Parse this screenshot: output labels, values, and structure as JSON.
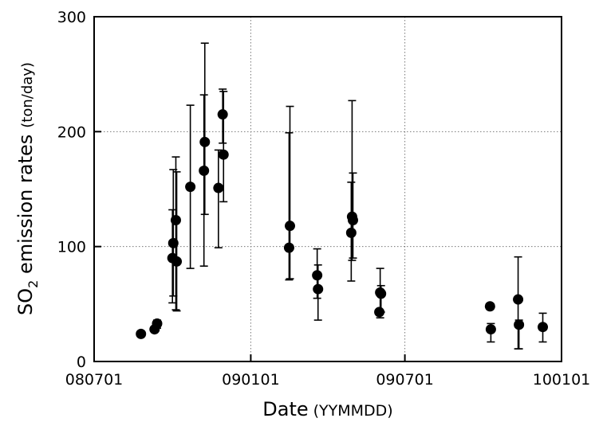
{
  "chart_data": {
    "type": "scatter",
    "title": "",
    "xlabel": "Date",
    "xlabel_unit": "(YYMMDD)",
    "ylabel_main": "SO",
    "ylabel_sub": "2",
    "ylabel_rest": " emission rates",
    "ylabel_unit": "(ton/day)",
    "xlim": [
      "2008-07-01",
      "2010-01-01"
    ],
    "ylim": [
      0,
      300
    ],
    "x_ticks": [
      {
        "date": "2008-07-01",
        "label": "080701"
      },
      {
        "date": "2009-01-01",
        "label": "090101"
      },
      {
        "date": "2009-07-01",
        "label": "090701"
      },
      {
        "date": "2010-01-01",
        "label": "100101"
      }
    ],
    "y_ticks": [
      {
        "value": 0,
        "label": "0"
      },
      {
        "value": 100,
        "label": "100"
      },
      {
        "value": 200,
        "label": "200"
      },
      {
        "value": 300,
        "label": "300"
      }
    ],
    "grid": "dotted",
    "points": [
      {
        "date": "2008-08-25",
        "y": 24,
        "err": null
      },
      {
        "date": "2008-09-10",
        "y": 28,
        "err": null
      },
      {
        "date": "2008-09-13",
        "y": 33,
        "err": [
          29,
          36
        ]
      },
      {
        "date": "2008-10-01",
        "y": 90,
        "err": [
          51,
          132
        ]
      },
      {
        "date": "2008-10-02",
        "y": 103,
        "err": [
          57,
          167
        ]
      },
      {
        "date": "2008-10-05",
        "y": 123,
        "err": [
          45,
          178
        ]
      },
      {
        "date": "2008-10-06",
        "y": 87,
        "err": [
          44,
          165
        ]
      },
      {
        "date": "2008-10-22",
        "y": 152,
        "err": [
          81,
          223
        ]
      },
      {
        "date": "2008-11-07",
        "y": 166,
        "err": [
          83,
          232
        ]
      },
      {
        "date": "2008-11-08",
        "y": 191,
        "err": [
          128,
          277
        ]
      },
      {
        "date": "2008-11-24",
        "y": 151,
        "err": [
          99,
          184
        ]
      },
      {
        "date": "2008-11-29",
        "y": 215,
        "err": [
          190,
          237
        ]
      },
      {
        "date": "2008-11-30",
        "y": 180,
        "err": [
          139,
          235
        ]
      },
      {
        "date": "2009-02-15",
        "y": 99,
        "err": [
          71,
          199
        ]
      },
      {
        "date": "2009-02-16",
        "y": 118,
        "err": [
          72,
          222
        ]
      },
      {
        "date": "2009-03-20",
        "y": 75,
        "err": [
          55,
          98
        ]
      },
      {
        "date": "2009-03-21",
        "y": 63,
        "err": [
          36,
          84
        ]
      },
      {
        "date": "2009-04-29",
        "y": 112,
        "err": [
          70,
          156
        ]
      },
      {
        "date": "2009-04-30",
        "y": 126,
        "err": [
          88,
          227
        ]
      },
      {
        "date": "2009-05-01",
        "y": 123,
        "err": [
          90,
          164
        ]
      },
      {
        "date": "2009-06-01",
        "y": 43,
        "err": null
      },
      {
        "date": "2009-06-02",
        "y": 60,
        "err": [
          38,
          81
        ]
      },
      {
        "date": "2009-06-03",
        "y": 59,
        "err": [
          43,
          66
        ]
      },
      {
        "date": "2009-10-09",
        "y": 48,
        "err": null
      },
      {
        "date": "2009-10-10",
        "y": 28,
        "err": [
          17,
          33
        ]
      },
      {
        "date": "2009-11-11",
        "y": 54,
        "err": [
          11,
          91
        ]
      },
      {
        "date": "2009-11-12",
        "y": 32,
        "err": [
          11,
          36
        ]
      },
      {
        "date": "2009-12-10",
        "y": 30,
        "err": [
          17,
          42
        ]
      }
    ]
  }
}
